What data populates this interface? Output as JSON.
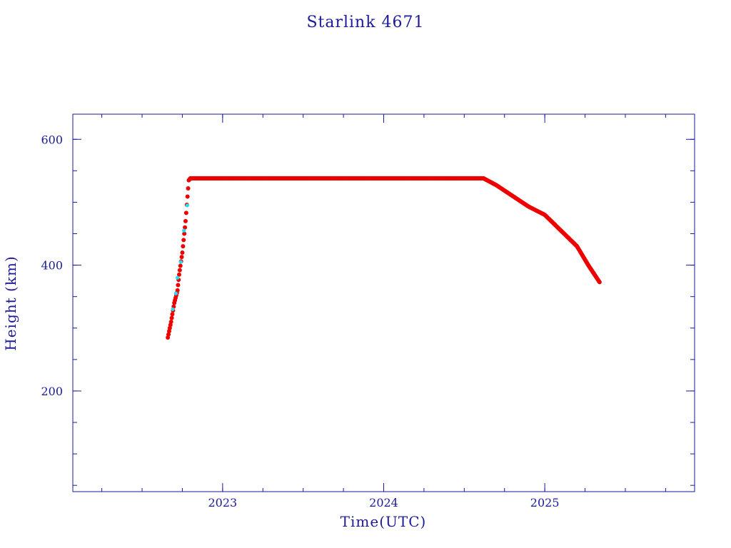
{
  "chart_data": {
    "type": "scatter",
    "title": "Starlink 4671",
    "xlabel": "Time(UTC)",
    "ylabel": "Height (km)",
    "xlim": [
      2022.07,
      2025.93
    ],
    "ylim": [
      40,
      640
    ],
    "x_ticks": [
      {
        "value": 2023,
        "label": "2023"
      },
      {
        "value": 2024,
        "label": "2024"
      },
      {
        "value": 2025,
        "label": "2025"
      }
    ],
    "y_ticks": [
      {
        "value": 200,
        "label": "200"
      },
      {
        "value": 400,
        "label": "400"
      },
      {
        "value": 600,
        "label": "600"
      }
    ],
    "x_minor_step": 0.25,
    "y_minor_step": 50,
    "grid": false,
    "legend": "none",
    "colors": {
      "axis": "#1a1a9a",
      "series": "#ee0000",
      "highlight": "#22ddee"
    },
    "series": [
      {
        "values": [
          [
            2022.66,
            285
          ],
          [
            2022.68,
            310
          ],
          [
            2022.7,
            340
          ],
          [
            2022.72,
            360
          ],
          [
            2022.73,
            385
          ],
          [
            2022.75,
            420
          ],
          [
            2022.77,
            470
          ],
          [
            2022.79,
            535
          ],
          [
            2022.8,
            538
          ],
          [
            2023.0,
            538
          ],
          [
            2023.25,
            538
          ],
          [
            2023.5,
            538
          ],
          [
            2023.75,
            538
          ],
          [
            2024.0,
            538
          ],
          [
            2024.25,
            538
          ],
          [
            2024.5,
            538
          ],
          [
            2024.62,
            538
          ],
          [
            2024.7,
            527
          ],
          [
            2024.8,
            510
          ],
          [
            2024.9,
            493
          ],
          [
            2025.0,
            480
          ],
          [
            2025.1,
            455
          ],
          [
            2025.2,
            430
          ],
          [
            2025.27,
            400
          ],
          [
            2025.34,
            373
          ]
        ]
      },
      {
        "values": [
          [
            2022.69,
            330
          ],
          [
            2022.71,
            355
          ],
          [
            2022.72,
            380
          ],
          [
            2022.74,
            405
          ],
          [
            2022.76,
            455
          ],
          [
            2022.78,
            495
          ]
        ]
      }
    ]
  }
}
